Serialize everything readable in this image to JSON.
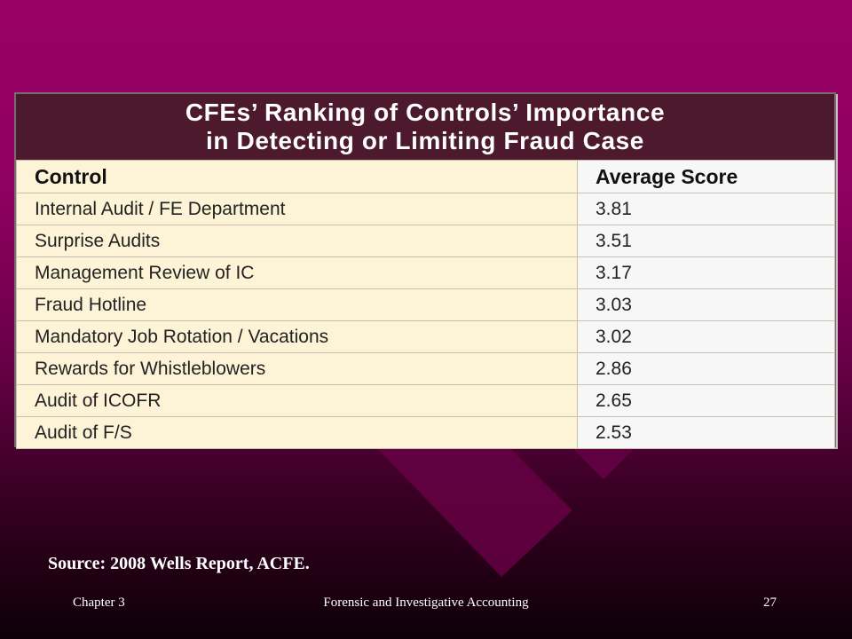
{
  "table": {
    "title_line1": "CFEs’ Ranking of Controls’ Importance",
    "title_line2": "in Detecting or Limiting Fraud Case",
    "headers": [
      "Control",
      "Average Score"
    ],
    "rows": [
      {
        "control": "Internal Audit / FE Department",
        "score": "3.81"
      },
      {
        "control": "Surprise Audits",
        "score": "3.51"
      },
      {
        "control": "Management Review of IC",
        "score": "3.17"
      },
      {
        "control": "Fraud Hotline",
        "score": "3.03"
      },
      {
        "control": "Mandatory Job Rotation / Vacations",
        "score": "3.02"
      },
      {
        "control": "Rewards for Whistleblowers",
        "score": "2.86"
      },
      {
        "control": "Audit of ICOFR",
        "score": "2.65"
      },
      {
        "control": "Audit of F/S",
        "score": "2.53"
      }
    ]
  },
  "source": "Source: 2008 Wells Report, ACFE.",
  "footer": {
    "left": "Chapter 3",
    "center": "Forensic and Investigative Accounting",
    "right": "27"
  },
  "colors": {
    "background_top": "#990066",
    "title_bar": "#4c1a2c",
    "control_column": "#fdf3d6"
  }
}
